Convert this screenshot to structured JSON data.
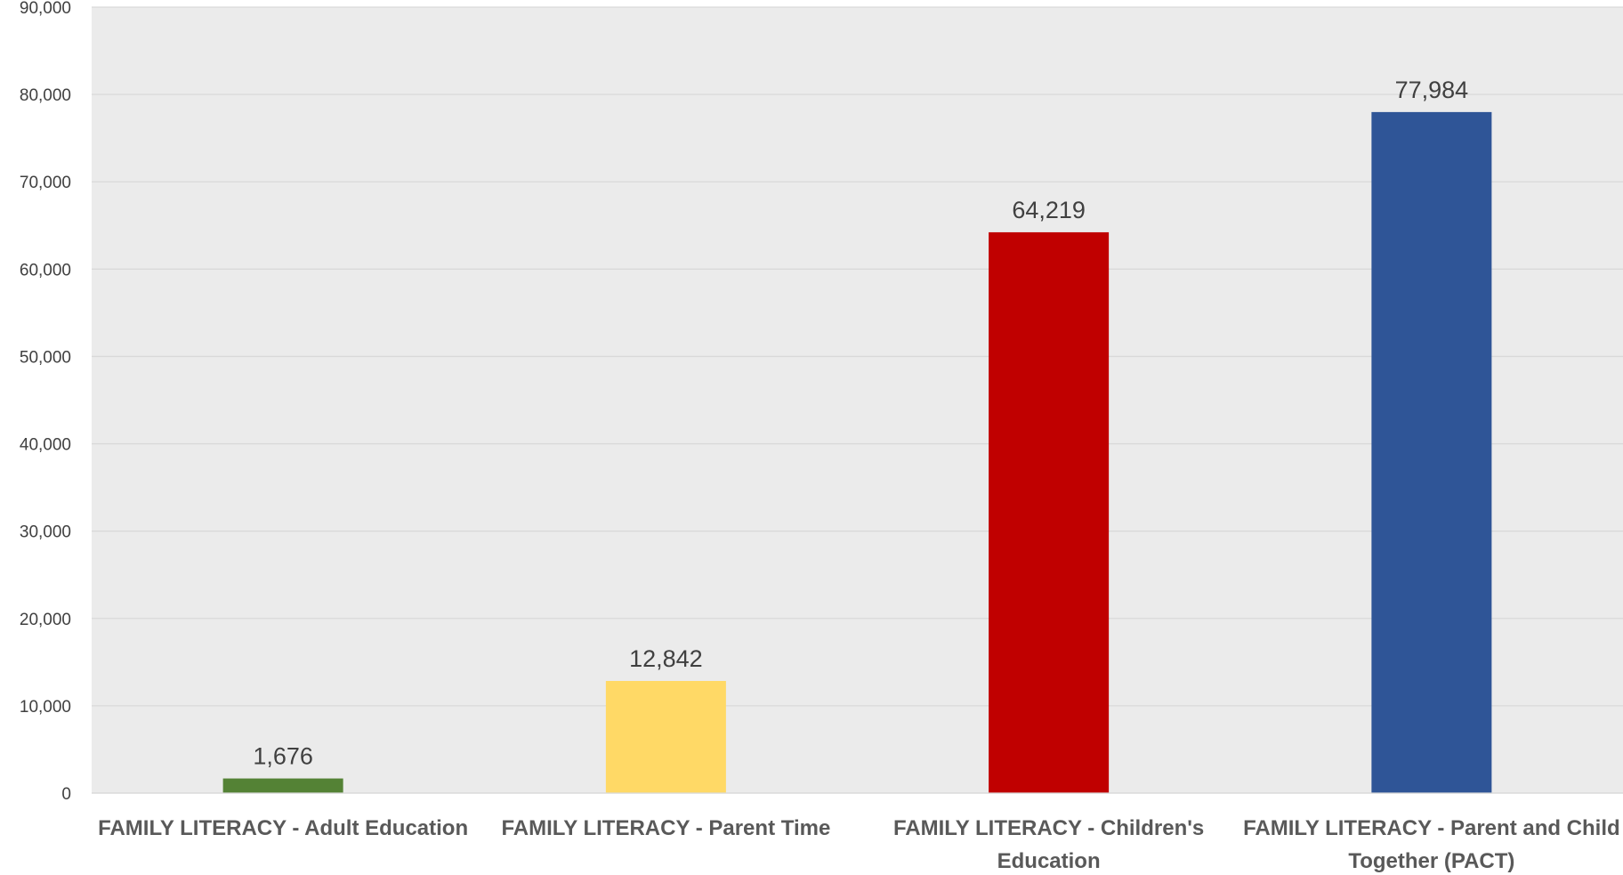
{
  "chart_data": {
    "type": "bar",
    "categories": [
      "FAMILY LITERACY - Adult Education",
      "FAMILY LITERACY - Parent Time",
      "FAMILY LITERACY - Children's Education",
      "FAMILY LITERACY - Parent and Child Together (PACT)"
    ],
    "category_label_lines": [
      [
        "FAMILY LITERACY - Adult Education"
      ],
      [
        "FAMILY LITERACY - Parent Time"
      ],
      [
        "FAMILY LITERACY - Children's",
        "Education"
      ],
      [
        "FAMILY LITERACY - Parent and Child",
        "Together (PACT)"
      ]
    ],
    "values": [
      1676,
      12842,
      64219,
      77984
    ],
    "data_labels": [
      "1,676",
      "12,842",
      "64,219",
      "77,984"
    ],
    "bar_colors": [
      "#548235",
      "#FFD966",
      "#C00000",
      "#2F5597"
    ],
    "title": "",
    "xlabel": "",
    "ylabel": "",
    "ylim": [
      0,
      90000
    ],
    "yticks": [
      0,
      10000,
      20000,
      30000,
      40000,
      50000,
      60000,
      70000,
      80000,
      90000
    ],
    "ytick_labels": [
      "0",
      "10,000",
      "20,000",
      "30,000",
      "40,000",
      "50,000",
      "60,000",
      "70,000",
      "80,000",
      "90,000"
    ],
    "grid": true,
    "legend": "none",
    "plot_background": "#EBEBEB",
    "gridline_color": "#D9D9D9"
  }
}
